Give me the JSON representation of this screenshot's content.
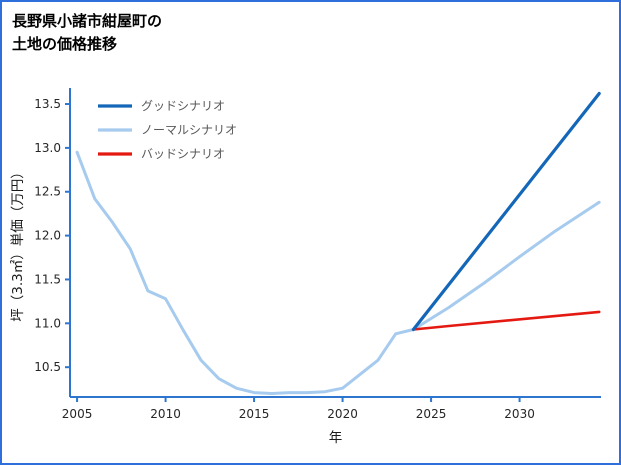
{
  "title": {
    "line1": "長野県小諸市紺屋町の",
    "line2": "土地の価格推移"
  },
  "chart_data": {
    "type": "line",
    "title": "長野県小諸市紺屋町の土地の価格推移",
    "xlabel": "年",
    "ylabel": "坪（3.3㎡）単価（万円）",
    "xlim": [
      2004.6,
      2034.6
    ],
    "ylim": [
      10.16,
      13.66
    ],
    "xticks": [
      2005,
      2010,
      2015,
      2020,
      2025,
      2030
    ],
    "xtick_labels": [
      "2005",
      "2010",
      "2015",
      "2020",
      "2025",
      "2030"
    ],
    "yticks": [
      10.5,
      11.0,
      11.5,
      12.0,
      12.5,
      13.0,
      13.5
    ],
    "ytick_labels": [
      "10.5",
      "11.0",
      "11.5",
      "12.0",
      "12.5",
      "13.0",
      "13.5"
    ],
    "grid": false,
    "legend_position": "upper-left",
    "axis_color": "#2e75d0",
    "tick_color": "#262626",
    "legend_text_color": "#595959",
    "series": [
      {
        "id": "good-scenario",
        "name": "グッドシナリオ",
        "color": "#1467b8",
        "width": 3.2,
        "x": [
          2024,
          2034.5
        ],
        "y": [
          10.93,
          13.62
        ]
      },
      {
        "id": "normal-scenario",
        "name": "ノーマルシナリオ",
        "color": "#a6cbee",
        "width": 3,
        "x": [
          2005,
          2006,
          2007,
          2008,
          2009,
          2010,
          2011,
          2012,
          2013,
          2014,
          2015,
          2016,
          2017,
          2018,
          2019,
          2020,
          2021,
          2022,
          2023,
          2024,
          2026,
          2028,
          2030,
          2032,
          2034.5
        ],
        "y": [
          12.95,
          12.42,
          12.15,
          11.85,
          11.37,
          11.28,
          10.92,
          10.58,
          10.37,
          10.26,
          10.21,
          10.2,
          10.21,
          10.21,
          10.22,
          10.26,
          10.42,
          10.58,
          10.88,
          10.93,
          11.18,
          11.46,
          11.76,
          12.05,
          12.38
        ]
      },
      {
        "id": "bad-scenario",
        "name": "バッドシナリオ",
        "color": "#e41a12",
        "width": 2.6,
        "x": [
          2024,
          2026,
          2034.5
        ],
        "y": [
          10.93,
          10.97,
          11.13
        ]
      }
    ]
  }
}
